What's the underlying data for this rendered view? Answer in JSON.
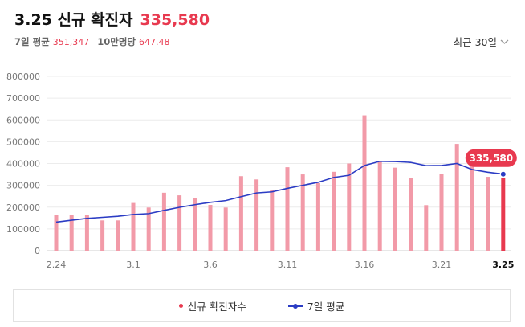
{
  "header": {
    "title": "3.25 신규 확진자",
    "value": "335,580",
    "avg_label": "7일 평균",
    "avg_value": "351,347",
    "per_label": "10만명당",
    "per_value": "647.48",
    "period": "최근 30일",
    "chevron_icon": "chevron-down-icon"
  },
  "legend": {
    "cases_label": "신규 확진자수",
    "avg_label": "7일 평균"
  },
  "colors": {
    "bar": "#f29aa8",
    "bar_last": "#e8394f",
    "line": "#2b3cc4",
    "accent": "#e8394f"
  },
  "chart_data": {
    "type": "bar",
    "ylim": [
      0,
      800000
    ],
    "y_ticks": [
      "0",
      "100000",
      "200000",
      "300000",
      "400000",
      "500000",
      "600000",
      "700000",
      "800000"
    ],
    "x_tick_labels": [
      "2.24",
      "3.1",
      "3.6",
      "3.11",
      "3.16",
      "3.21",
      "3.25"
    ],
    "x_tick_indices": [
      0,
      5,
      10,
      15,
      20,
      25,
      29
    ],
    "series": [
      {
        "name": "신규 확진자수",
        "values": [
          165000,
          163000,
          163000,
          139000,
          139000,
          219000,
          198000,
          266000,
          254000,
          242000,
          210000,
          198000,
          342000,
          327000,
          280000,
          383000,
          350000,
          310000,
          362000,
          400000,
          621000,
          407000,
          381000,
          334000,
          209000,
          353000,
          490000,
          395000,
          339000,
          335580
        ]
      },
      {
        "name": "7일 평균",
        "values": [
          131000,
          140000,
          148000,
          153000,
          158000,
          166000,
          170000,
          185000,
          199000,
          211000,
          222000,
          230000,
          248000,
          265000,
          270000,
          286000,
          300000,
          314000,
          336000,
          346000,
          391000,
          410000,
          409000,
          405000,
          390000,
          391000,
          400000,
          372000,
          360000,
          351347
        ]
      }
    ],
    "highlight_label": "335,580"
  }
}
